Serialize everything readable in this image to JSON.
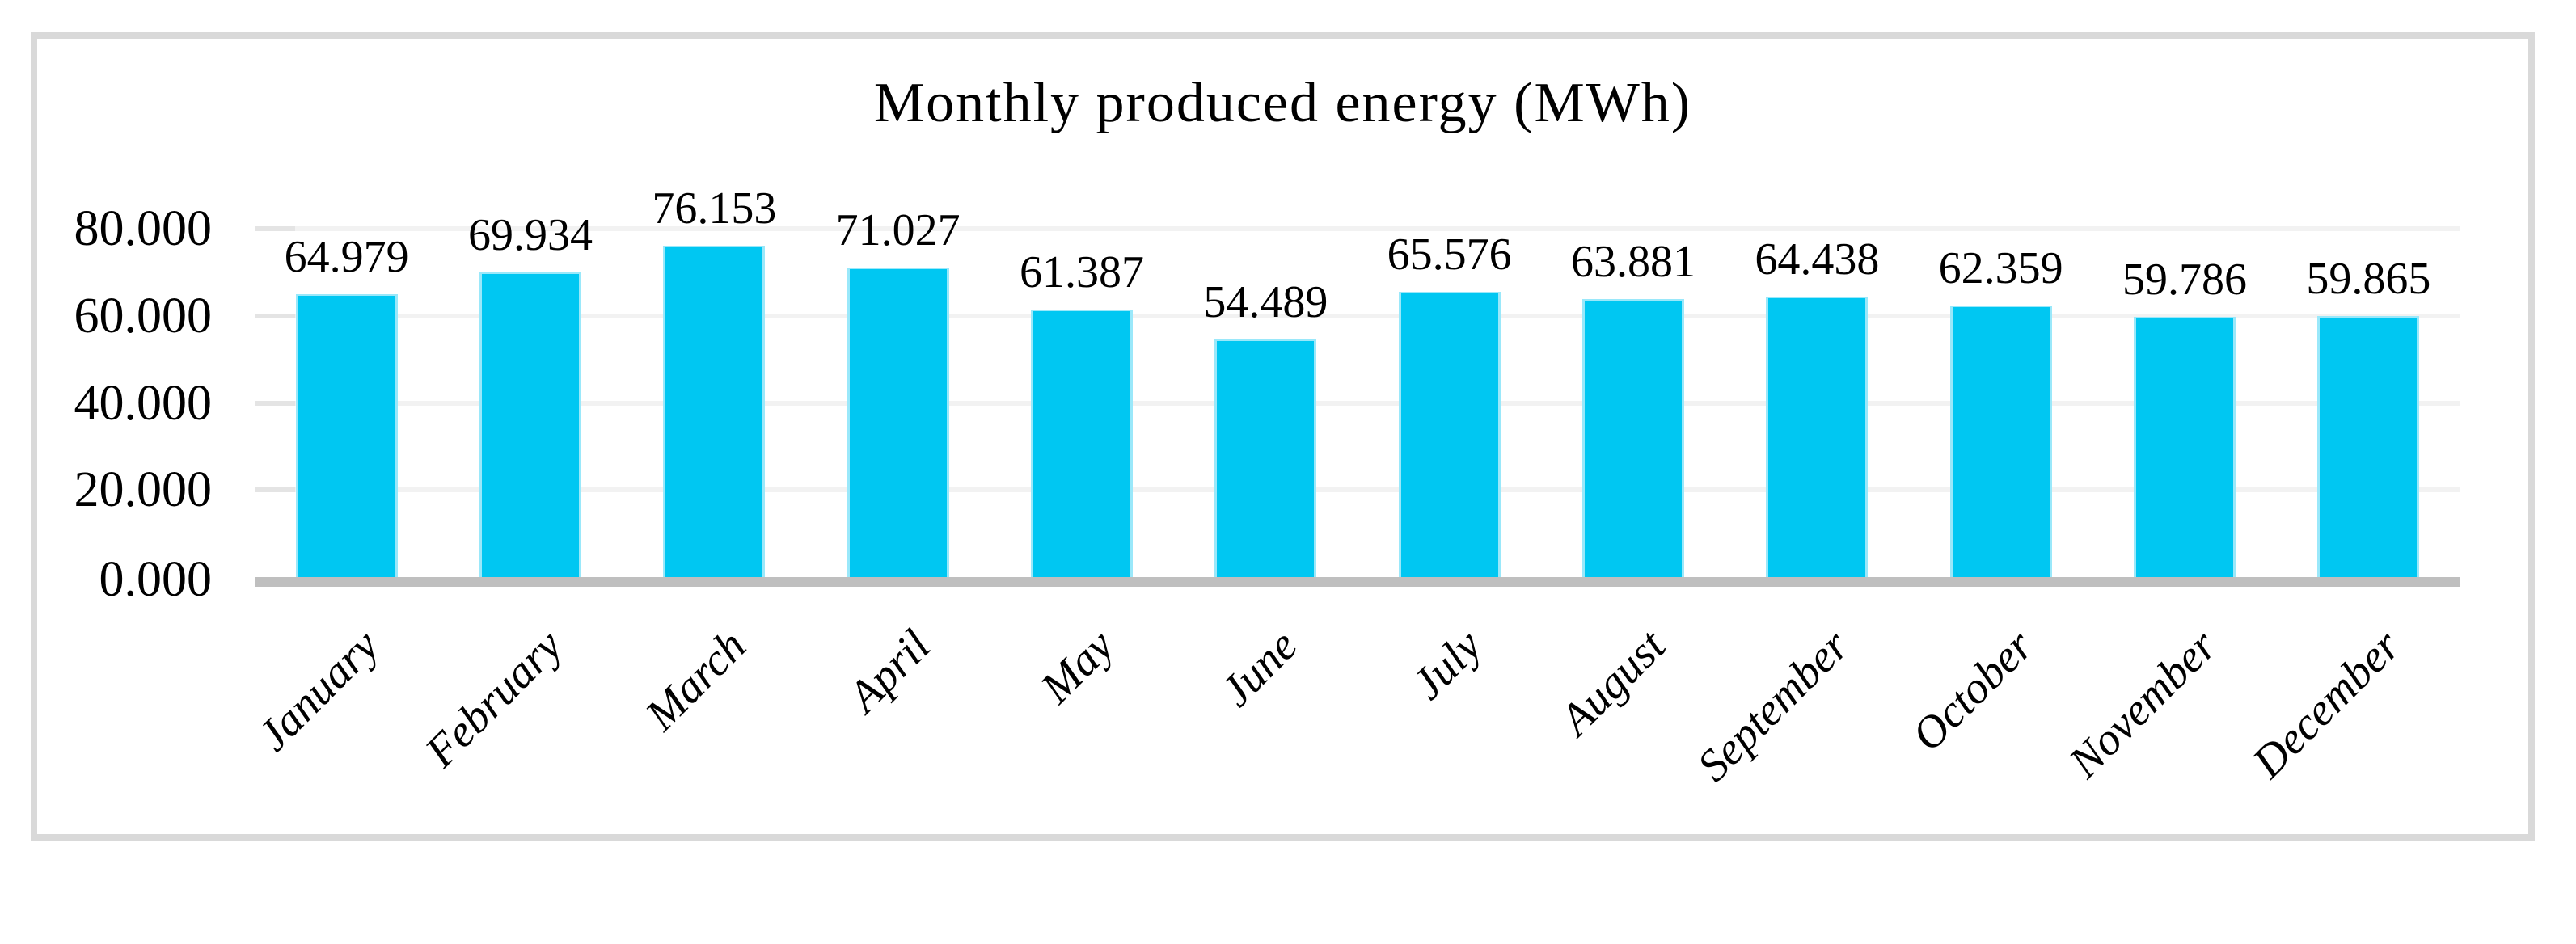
{
  "page": {
    "background_color": "#ffffff",
    "frame_border_color": "#d9d9d9"
  },
  "chart_data": {
    "type": "bar",
    "title": "Monthly produced energy (MWh)",
    "categories": [
      "January",
      "February",
      "March",
      "April",
      "May",
      "June",
      "July",
      "August",
      "September",
      "October",
      "November",
      "December"
    ],
    "values": [
      64979,
      69934,
      76153,
      71027,
      61387,
      54489,
      65576,
      63881,
      64438,
      62359,
      59786,
      59865
    ],
    "value_labels": [
      "64.979",
      "69.934",
      "76.153",
      "71.027",
      "61.387",
      "54.489",
      "65.576",
      "63.881",
      "64.438",
      "62.359",
      "59.786",
      "59.865"
    ],
    "xlabel": "",
    "ylabel": "",
    "y_tick_labels": [
      "0.000",
      "20.000",
      "40.000",
      "60.000",
      "80.000"
    ],
    "y_tick_values": [
      0,
      20000,
      40000,
      60000,
      80000
    ],
    "ylim": [
      0,
      80000
    ],
    "grid": true,
    "legend_position": "none",
    "category_label_rotation_deg": 45,
    "colors": {
      "bar_fill": "#00c7f2",
      "bar_edge_highlight": "#9ae8fa",
      "gridline": "#f2f2f2",
      "tick_segment": "#e4e4e4",
      "axis_baseline": "#bfbfbf",
      "text": "#000000"
    }
  }
}
